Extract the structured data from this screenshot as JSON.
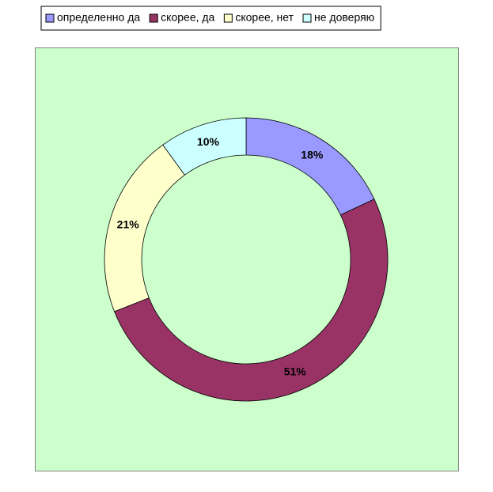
{
  "chart_data": {
    "type": "donut",
    "categories": [
      "определенно да",
      "скорее, да",
      "скорее, нет",
      "не доверяю"
    ],
    "values": [
      18,
      51,
      21,
      10
    ],
    "value_labels": [
      "18%",
      "51%",
      "21%",
      "10%"
    ],
    "colors": [
      "#9999ff",
      "#993366",
      "#ffffcc",
      "#ccffff"
    ],
    "legend_position": "top"
  }
}
